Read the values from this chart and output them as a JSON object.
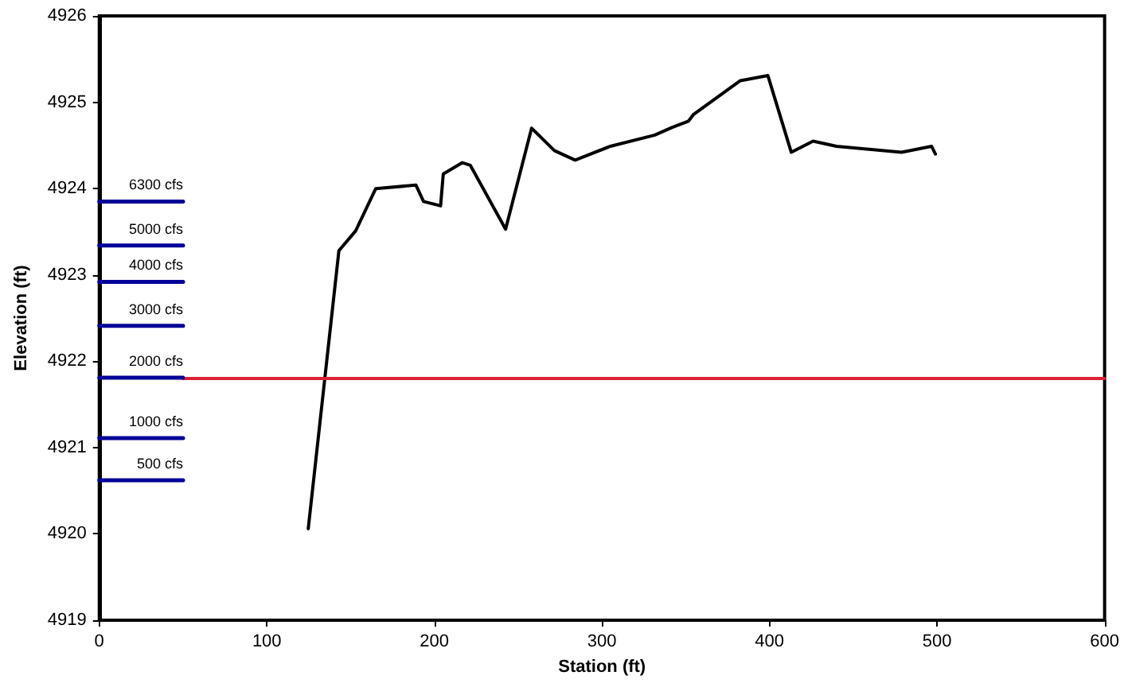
{
  "chart_data": {
    "type": "line",
    "xlabel": "Station (ft)",
    "ylabel": "Elevation (ft)",
    "xlim": [
      0,
      600
    ],
    "xticks": [
      0,
      100,
      200,
      300,
      400,
      500,
      600
    ],
    "ylim": [
      4919,
      4926
    ],
    "yticks": [
      4919,
      4920,
      4921,
      4922,
      4923,
      4924,
      4925,
      4926
    ],
    "grid": false,
    "legend": false,
    "marker": "none",
    "line_style": "solid",
    "series": [
      {
        "color": "#000000",
        "x": [
          124.7,
          143,
          153,
          165,
          189,
          193.5,
          203.7,
          205.3,
          216.7,
          221.4,
          242.5,
          258,
          271.6,
          284,
          305,
          331.5,
          342,
          351.6,
          354.7,
          382.6,
          399,
          413,
          426,
          440,
          478.8,
          496.7,
          499
        ],
        "values": [
          4920.06,
          4923.28,
          4923.51,
          4924.0,
          4924.04,
          4923.85,
          4923.8,
          4924.17,
          4924.3,
          4924.27,
          4923.53,
          4924.7,
          4924.44,
          4924.33,
          4924.49,
          4924.62,
          4924.71,
          4924.78,
          4924.86,
          4925.25,
          4925.31,
          4924.42,
          4924.55,
          4924.49,
          4924.42,
          4924.49,
          4924.4
        ]
      },
      {
        "color": "#dd2233",
        "x": [
          50,
          600
        ],
        "values": [
          4921.8,
          4921.8
        ]
      },
      {
        "name": "6300 cfs",
        "color": "#000099",
        "x": [
          0,
          50
        ],
        "values": [
          4923.85,
          4923.85
        ]
      },
      {
        "name": "5000 cfs",
        "color": "#000099",
        "x": [
          0,
          50
        ],
        "values": [
          4923.34,
          4923.34
        ]
      },
      {
        "name": "4000 cfs",
        "color": "#000099",
        "x": [
          0,
          50
        ],
        "values": [
          4922.92,
          4922.92
        ]
      },
      {
        "name": "3000 cfs",
        "color": "#000099",
        "x": [
          0,
          50
        ],
        "values": [
          4922.41,
          4922.41
        ]
      },
      {
        "name": "2000 cfs",
        "color": "#000099",
        "x": [
          0,
          50
        ],
        "values": [
          4921.81,
          4921.81
        ]
      },
      {
        "name": "1000 cfs",
        "color": "#000099",
        "x": [
          0,
          50
        ],
        "values": [
          4921.11,
          4921.11
        ]
      },
      {
        "name": "500 cfs",
        "color": "#000099",
        "x": [
          0,
          50
        ],
        "values": [
          4920.62,
          4920.62
        ]
      }
    ]
  }
}
